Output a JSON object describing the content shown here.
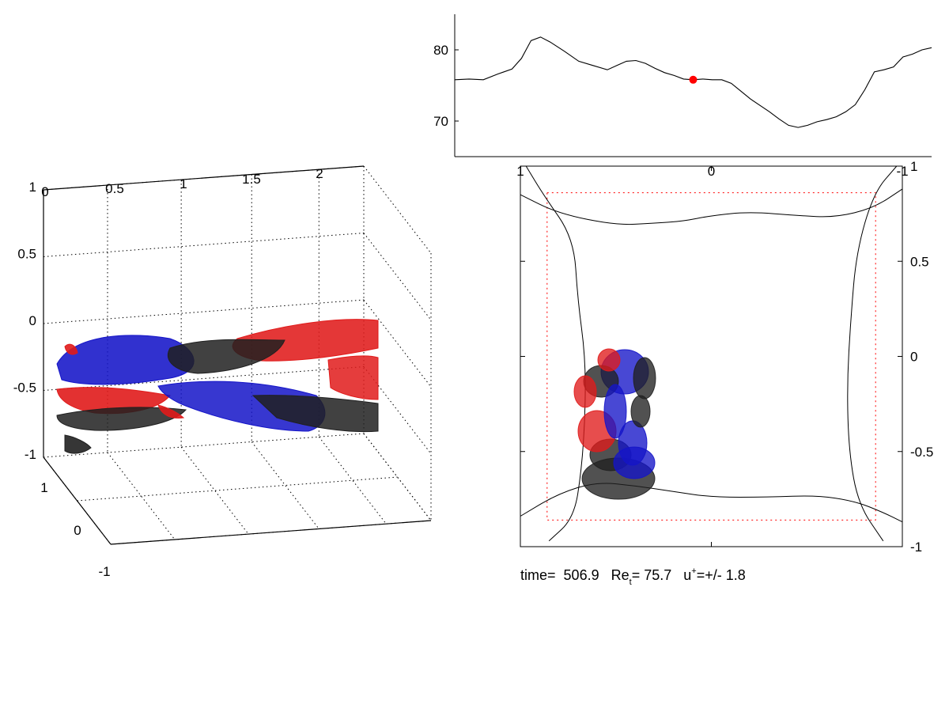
{
  "colors": {
    "positive": "#e01b1b",
    "negative": "#1414c8",
    "dark": "#202020",
    "marker": "#ff0000",
    "box": "#ff0000"
  },
  "chart_data": [
    {
      "type": "line",
      "title": "",
      "xlabel": "",
      "ylabel": "",
      "ylim": [
        65,
        85
      ],
      "yticks": [
        70,
        80
      ],
      "grid": false,
      "x_range": [
        0,
        1
      ],
      "x": [
        0.0,
        0.03,
        0.06,
        0.09,
        0.12,
        0.14,
        0.16,
        0.18,
        0.2,
        0.23,
        0.26,
        0.29,
        0.32,
        0.34,
        0.36,
        0.38,
        0.4,
        0.42,
        0.44,
        0.46,
        0.48,
        0.5,
        0.52,
        0.54,
        0.56,
        0.58,
        0.6,
        0.62,
        0.64,
        0.66,
        0.68,
        0.7,
        0.72,
        0.74,
        0.76,
        0.78,
        0.8,
        0.82,
        0.84,
        0.86,
        0.88,
        0.9,
        0.92,
        0.94,
        0.96,
        0.98,
        1.0
      ],
      "y": [
        75.8,
        75.9,
        75.8,
        76.6,
        77.3,
        78.8,
        81.3,
        81.8,
        81.1,
        79.8,
        78.4,
        77.8,
        77.2,
        77.8,
        78.4,
        78.5,
        78.1,
        77.4,
        76.8,
        76.4,
        75.9,
        75.8,
        75.9,
        75.8,
        75.8,
        75.3,
        74.2,
        73.1,
        72.2,
        71.3,
        70.3,
        69.4,
        69.1,
        69.4,
        69.9,
        70.2,
        70.6,
        71.3,
        72.3,
        74.4,
        76.9,
        77.2,
        77.6,
        79.0,
        79.4,
        80.0,
        80.3
      ],
      "marker": {
        "x": 0.5,
        "y": 75.8
      }
    },
    {
      "type": "scatter",
      "title": "",
      "xlim": [
        1,
        -1
      ],
      "ylim": [
        -1,
        1
      ],
      "xticks": [
        1,
        0,
        -1
      ],
      "yticks": [
        1,
        0.5,
        0,
        -0.5,
        -1
      ],
      "xtick_labels": [
        "1",
        "0",
        "-1"
      ],
      "ytick_labels": [
        "1",
        "0.5",
        "0",
        "-0.5",
        "-1"
      ],
      "grid": false,
      "wall_curve_top": [
        [
          1.0,
          0.85
        ],
        [
          0.8,
          0.75
        ],
        [
          0.5,
          0.69
        ],
        [
          0.3,
          0.7
        ],
        [
          0.15,
          0.71
        ],
        [
          0.0,
          0.74
        ],
        [
          -0.2,
          0.76
        ],
        [
          -0.45,
          0.74
        ],
        [
          -0.65,
          0.73
        ],
        [
          -0.85,
          0.78
        ],
        [
          -1.0,
          0.88
        ]
      ],
      "wall_curve_bottom": [
        [
          1.0,
          -0.84
        ],
        [
          0.8,
          -0.72
        ],
        [
          0.6,
          -0.66
        ],
        [
          0.4,
          -0.68
        ],
        [
          0.2,
          -0.71
        ],
        [
          0.0,
          -0.74
        ],
        [
          -0.3,
          -0.74
        ],
        [
          -0.55,
          -0.73
        ],
        [
          -0.75,
          -0.76
        ],
        [
          -0.9,
          -0.82
        ],
        [
          -1.0,
          -0.87
        ]
      ],
      "wall_curve_left": [
        [
          0.97,
          1.0
        ],
        [
          0.88,
          0.85
        ],
        [
          0.72,
          0.62
        ],
        [
          0.7,
          0.3
        ],
        [
          0.66,
          0.0
        ],
        [
          0.66,
          -0.3
        ],
        [
          0.68,
          -0.6
        ],
        [
          0.72,
          -0.85
        ],
        [
          0.85,
          -0.97
        ]
      ],
      "wall_curve_right": [
        [
          -0.97,
          1.0
        ],
        [
          -0.85,
          0.86
        ],
        [
          -0.76,
          0.55
        ],
        [
          -0.73,
          0.2
        ],
        [
          -0.71,
          -0.15
        ],
        [
          -0.72,
          -0.5
        ],
        [
          -0.77,
          -0.78
        ],
        [
          -0.9,
          -0.97
        ]
      ],
      "dotted_box": [
        0.86,
        -0.86,
        0.86,
        -0.86
      ]
    },
    {
      "type": "scatter",
      "title": "",
      "x_tick_labels": [
        "0",
        "0.5",
        "1",
        "1.5",
        "2"
      ],
      "z_tick_labels": [
        "1",
        "0.5",
        "0",
        "-0.5",
        "-1"
      ],
      "y_tick_labels": [
        "1",
        "0",
        "-1"
      ],
      "grid": true
    }
  ],
  "status": {
    "time_label": "time=",
    "time_value": "506.9",
    "re_label": "Re",
    "re_sub": "t",
    "re_value": "= 75.7",
    "u_label": "u",
    "u_sup": "+",
    "u_value": "=+/- 1.8"
  }
}
